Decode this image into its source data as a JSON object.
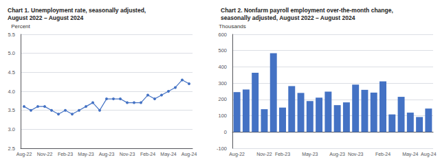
{
  "chart_data": [
    {
      "type": "line",
      "title": "Chart 1. Unemployment rate, seasonally adjusted,\nAugust 2022 – August 2024",
      "ylabel": "Percent",
      "categories": [
        "Aug-22",
        null,
        null,
        "Nov-22",
        null,
        null,
        "Feb-23",
        null,
        null,
        "May-23",
        null,
        null,
        "Aug-23",
        null,
        null,
        "Nov-23",
        null,
        null,
        "Feb-24",
        null,
        null,
        "May-24",
        null,
        null,
        "Aug-24"
      ],
      "values": [
        3.6,
        3.5,
        3.6,
        3.6,
        3.5,
        3.4,
        3.5,
        3.4,
        3.5,
        3.6,
        3.7,
        3.5,
        3.8,
        3.8,
        3.8,
        3.7,
        3.7,
        3.7,
        3.9,
        3.8,
        3.9,
        4.0,
        4.1,
        4.3,
        4.2
      ],
      "color": "#4472C4",
      "marker": "circle",
      "ylim": [
        2.5,
        5.5
      ],
      "yticks": [
        2.5,
        {
          "value": 3,
          "label": "3.0"
        },
        3.5,
        {
          "value": 4,
          "label": "4.0"
        },
        4.5,
        {
          "value": 5,
          "label": "5.0"
        },
        5.5
      ],
      "grid": true
    },
    {
      "type": "bar",
      "title": "Chart 2. Nonfarm payroll employment over-the-month change,\nseasonally adjusted, August 2022 – August 2024",
      "ylabel": "Thousands",
      "categories": [
        "Aug-22",
        null,
        null,
        "Nov-22",
        null,
        "Feb-23",
        null,
        null,
        "May-23",
        null,
        null,
        "Aug-23",
        null,
        "Nov-23",
        null,
        null,
        "Feb-24",
        null,
        null,
        "May-24",
        null,
        "Aug-24"
      ],
      "values": [
        245,
        261,
        364,
        140,
        484,
        150,
        282,
        240,
        190,
        211,
        248,
        165,
        182,
        291,
        259,
        242,
        311,
        108,
        216,
        119,
        92,
        144
      ],
      "color": "#4472C4",
      "ylim": [
        -100,
        600
      ],
      "yticks": [
        -100,
        0,
        100,
        200,
        300,
        400,
        500,
        600
      ],
      "grid": true
    }
  ]
}
